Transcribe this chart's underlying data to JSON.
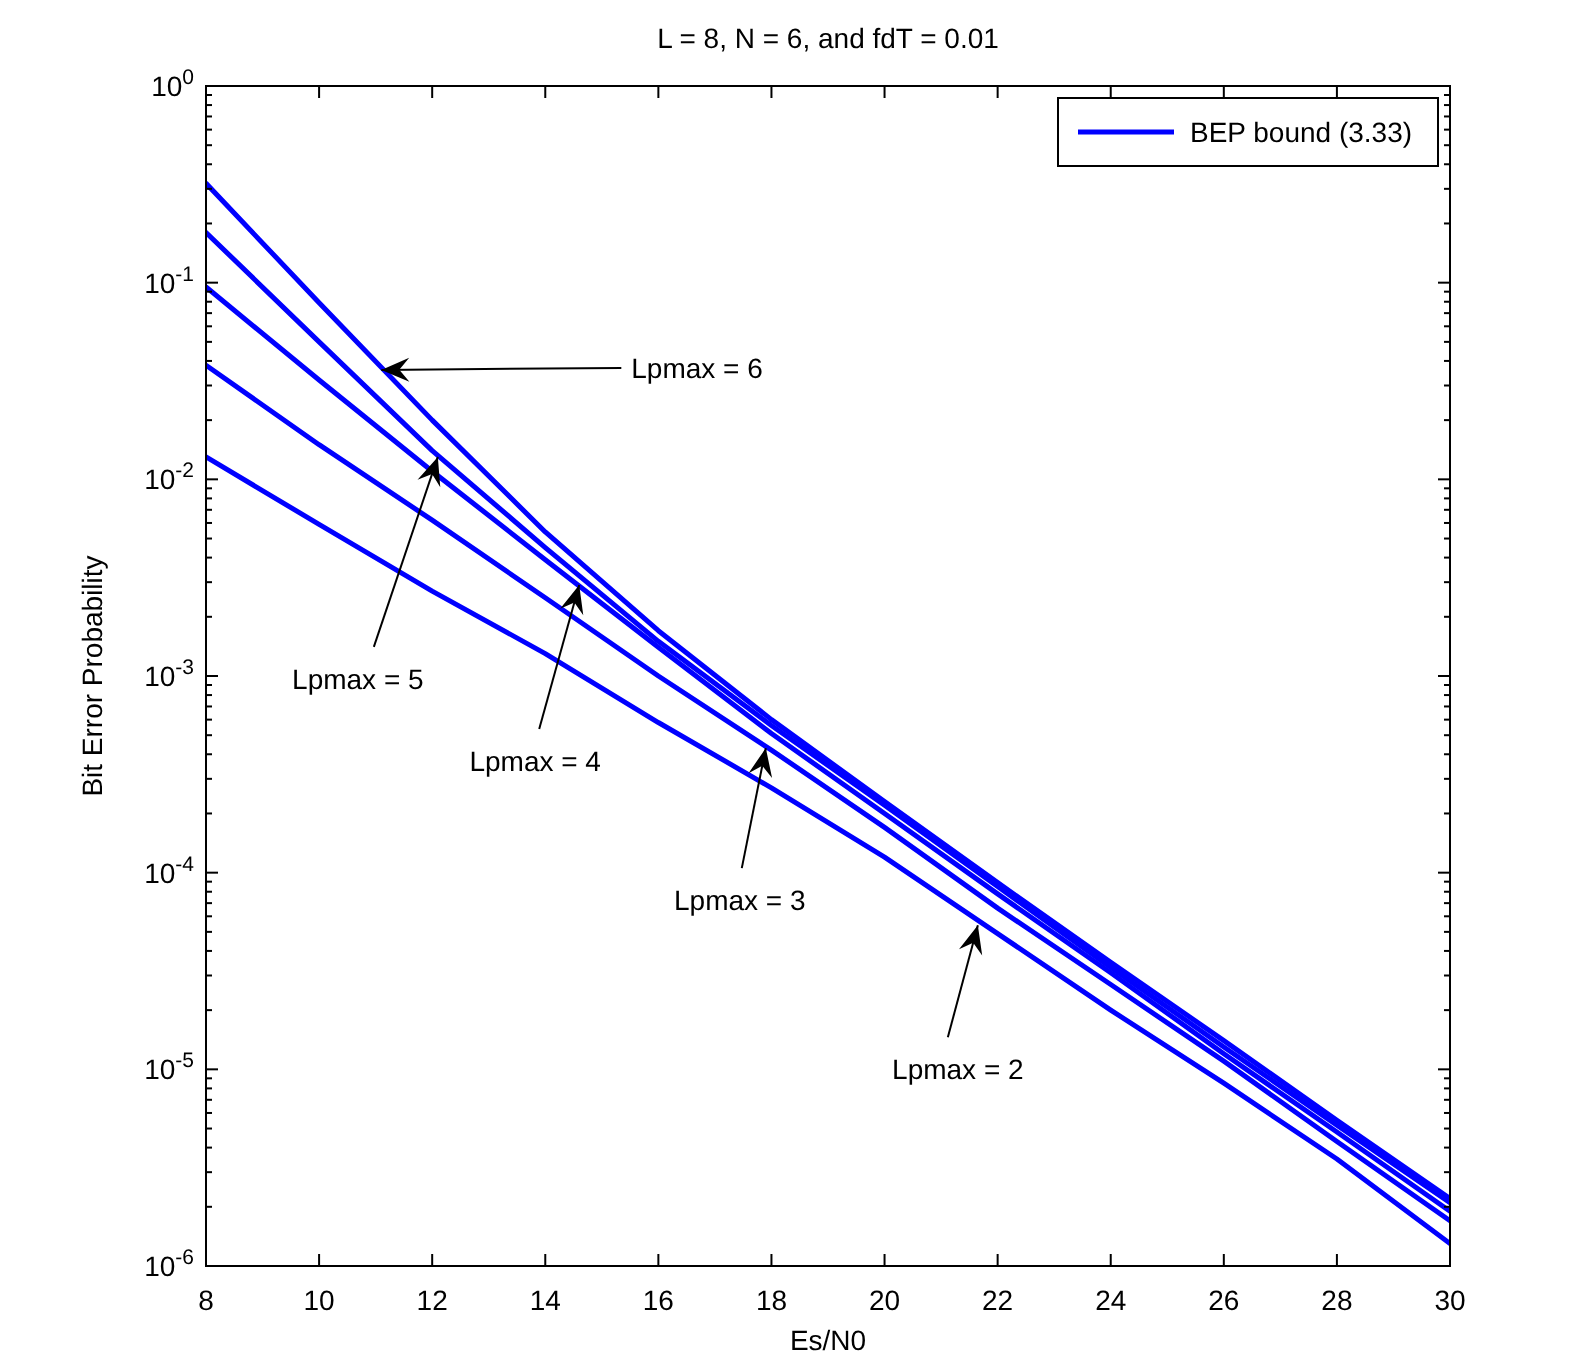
{
  "chart_data": {
    "type": "line",
    "title": "L = 8, N = 6, and fdT = 0.01",
    "xlabel": "Es/N0",
    "ylabel": "Bit Error Probability",
    "x": [
      8,
      10,
      12,
      14,
      16,
      18,
      20,
      22,
      24,
      26,
      28,
      30
    ],
    "series": [
      {
        "name": "BEP bound (3.33)",
        "color": "#0000ff",
        "values": [
          0.32,
          0.079,
          0.02,
          0.0054,
          0.0017,
          0.0006,
          0.00023,
          8.9e-05,
          3.5e-05,
          1.4e-05,
          5.5e-06,
          2.2e-06
        ]
      },
      {
        "color": "#0000ff",
        "values": [
          0.18,
          0.05,
          0.014,
          0.0045,
          0.0015,
          0.00056,
          0.00022,
          8.5e-05,
          3.3e-05,
          1.3e-05,
          5.2e-06,
          2.1e-06
        ]
      },
      {
        "color": "#0000ff",
        "values": [
          0.095,
          0.032,
          0.011,
          0.0039,
          0.0014,
          0.00051,
          0.0002,
          7.8e-05,
          3.1e-05,
          1.2e-05,
          4.8e-06,
          1.9e-06
        ]
      },
      {
        "color": "#0000ff",
        "values": [
          0.038,
          0.015,
          0.0062,
          0.0025,
          0.001,
          0.00042,
          0.00017,
          6.6e-05,
          2.7e-05,
          1.1e-05,
          4.3e-06,
          1.7e-06
        ]
      },
      {
        "color": "#0000ff",
        "values": [
          0.013,
          0.0059,
          0.0027,
          0.0013,
          0.00058,
          0.00027,
          0.00012,
          4.9e-05,
          2e-05,
          8.5e-06,
          3.5e-06,
          1.3e-06
        ]
      }
    ],
    "xlim": [
      8,
      30
    ],
    "xticks": [
      8,
      10,
      12,
      14,
      16,
      18,
      20,
      22,
      24,
      26,
      28,
      30
    ],
    "ylim": [
      1e-06,
      1
    ],
    "log": "y",
    "yticks": [
      {
        "value": 1e-06,
        "label": "10$^{-6}$"
      },
      {
        "value": 1e-05,
        "label": "10$^{-5}$"
      },
      {
        "value": 0.0001,
        "label": "10$^{-4}$"
      },
      {
        "value": 0.001,
        "label": "10$^{-3}$"
      },
      {
        "value": 0.01,
        "label": "10$^{-2}$"
      },
      {
        "value": 0.1,
        "label": "10$^{-1}$"
      },
      {
        "value": 1,
        "label": "10$^{0}$"
      }
    ],
    "legend": "top right",
    "grid": false,
    "line_style": "solid",
    "marker": "none",
    "annotations": [
      {
        "text": "Lpmax = 6",
        "x": 11.1,
        "y": 0.036
      },
      {
        "text": "Lpmax = 5",
        "x": 12.1,
        "y": 0.013
      },
      {
        "text": "Lpmax = 4",
        "x": 14.6,
        "y": 0.0029
      },
      {
        "text": "Lpmax = 3",
        "x": 17.9,
        "y": 0.00043
      },
      {
        "text": "Lpmax = 2",
        "x": 21.65,
        "y": 5.4e-05
      }
    ]
  }
}
